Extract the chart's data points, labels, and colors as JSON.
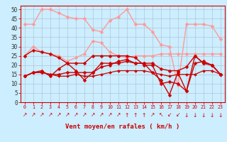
{
  "xlabel": "Vent moyen/en rafales ( km/h )",
  "bg_color": "#cceeff",
  "grid_color": "#aabbcc",
  "series": [
    {
      "color": "#ff9999",
      "linewidth": 1.0,
      "markersize": 2.5,
      "y": [
        42,
        42,
        50,
        50,
        48,
        46,
        45,
        45,
        39,
        38,
        44,
        46,
        50,
        42,
        42,
        38,
        31,
        30,
        9,
        42,
        42,
        42,
        41,
        34
      ]
    },
    {
      "color": "#ff9999",
      "linewidth": 1.0,
      "markersize": 2.5,
      "y": [
        25,
        30,
        27,
        26,
        25,
        22,
        24,
        26,
        33,
        32,
        27,
        25,
        24,
        25,
        25,
        25,
        26,
        26,
        26,
        26,
        26,
        26,
        26,
        26
      ]
    },
    {
      "color": "#cc0000",
      "linewidth": 1.0,
      "markersize": 2.5,
      "y": [
        25,
        28,
        27,
        26,
        24,
        21,
        21,
        21,
        25,
        25,
        25,
        25,
        25,
        24,
        20,
        20,
        10,
        11,
        10,
        6,
        21,
        22,
        20,
        15
      ]
    },
    {
      "color": "#cc0000",
      "linewidth": 1.0,
      "markersize": 2.5,
      "y": [
        14,
        16,
        17,
        14,
        18,
        21,
        17,
        12,
        16,
        21,
        21,
        21,
        22,
        21,
        21,
        16,
        12,
        4,
        16,
        6,
        25,
        21,
        20,
        15
      ]
    },
    {
      "color": "#cc0000",
      "linewidth": 1.0,
      "markersize": 2.5,
      "y": [
        14,
        16,
        16,
        15,
        15,
        16,
        16,
        16,
        16,
        19,
        20,
        22,
        23,
        21,
        21,
        21,
        18,
        17,
        17,
        19,
        25,
        21,
        20,
        15
      ]
    },
    {
      "color": "#cc0000",
      "linewidth": 0.9,
      "markersize": 2.0,
      "y": [
        14,
        16,
        16,
        15,
        14,
        14,
        15,
        14,
        14,
        15,
        16,
        17,
        17,
        17,
        17,
        16,
        15,
        14,
        15,
        15,
        15,
        17,
        17,
        15
      ]
    }
  ],
  "arrows": [
    "↗",
    "↗",
    "↗",
    "↗",
    "↗",
    "↗",
    "↗",
    "↗",
    "↗",
    "↗",
    "↗",
    "↗",
    "↑",
    "↑",
    "↑",
    "↗",
    "↖",
    "↙",
    "↙",
    "↓",
    "↓",
    "↓",
    "↓",
    "↓"
  ],
  "ylim": [
    0,
    52
  ],
  "yticks": [
    0,
    5,
    10,
    15,
    20,
    25,
    30,
    35,
    40,
    45,
    50
  ],
  "xlim": [
    -0.5,
    23.5
  ]
}
